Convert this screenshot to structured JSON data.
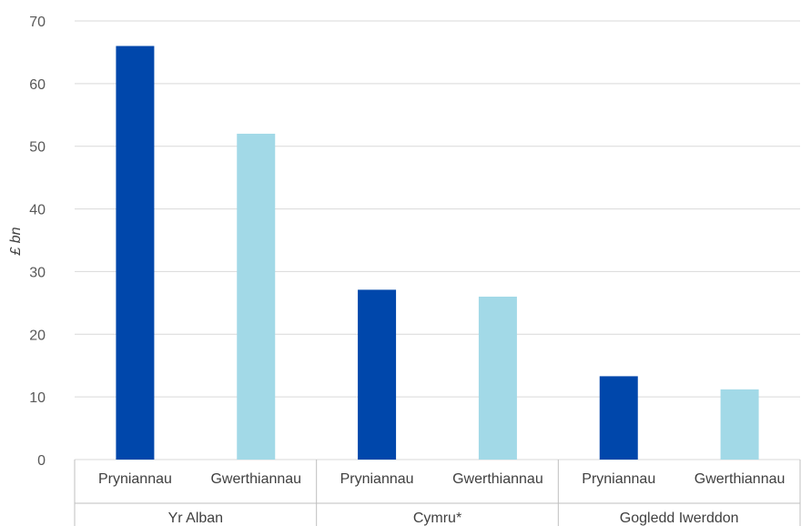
{
  "chart_data": {
    "type": "bar",
    "ylabel": "£ bn",
    "ylim": [
      0,
      70
    ],
    "yticks": [
      "0",
      "10",
      "20",
      "30",
      "40",
      "50",
      "60",
      "70"
    ],
    "grid": true,
    "groups": [
      {
        "name": "Yr Alban",
        "bars": [
          {
            "label": "Pryniannau",
            "value": 66,
            "color": "#0047AB"
          },
          {
            "label": "Gwerthiannau",
            "value": 52,
            "color": "#A2D9E7"
          }
        ]
      },
      {
        "name": "Cymru*",
        "bars": [
          {
            "label": "Pryniannau",
            "value": 27.1,
            "color": "#0047AB"
          },
          {
            "label": "Gwerthiannau",
            "value": 26,
            "color": "#A2D9E7"
          }
        ]
      },
      {
        "name": "Gogledd Iwerddon",
        "bars": [
          {
            "label": "Pryniannau",
            "value": 13.3,
            "color": "#0047AB"
          },
          {
            "label": "Gwerthiannau",
            "value": 11.2,
            "color": "#A2D9E7"
          }
        ]
      }
    ]
  }
}
